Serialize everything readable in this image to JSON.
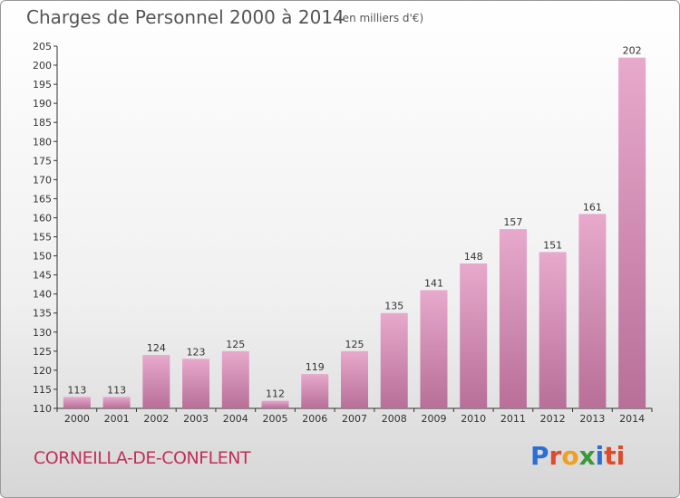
{
  "header": {
    "title": "Charges de Personnel 2000 à 2014",
    "unit": "(en milliers d'€)"
  },
  "footer": {
    "commune": "CORNEILLA-DE-CONFLENT",
    "logo": "Proxiti",
    "logo_letters": [
      "P",
      "r",
      "o",
      "x",
      "i",
      "ti"
    ]
  },
  "colors": {
    "bar_top": "#e7a9cc",
    "bar_bottom": "#b86f98",
    "axis": "#333333",
    "text": "#333333",
    "title": "#555555",
    "commune": "#c0305a"
  },
  "chart_data": {
    "type": "bar",
    "categories": [
      "2000",
      "2001",
      "2002",
      "2003",
      "2004",
      "2005",
      "2006",
      "2007",
      "2008",
      "2009",
      "2010",
      "2011",
      "2012",
      "2013",
      "2014"
    ],
    "values": [
      113,
      113,
      124,
      123,
      125,
      112,
      119,
      125,
      135,
      141,
      148,
      157,
      151,
      161,
      202
    ],
    "title": "Charges de Personnel 2000 à 2014",
    "subtitle": "(en milliers d'€)",
    "xlabel": "",
    "ylabel": "",
    "ylim": [
      110,
      205
    ],
    "yticks": [
      110,
      115,
      120,
      125,
      130,
      135,
      140,
      145,
      150,
      155,
      160,
      165,
      170,
      175,
      180,
      185,
      190,
      195,
      200,
      205
    ],
    "grid": false,
    "legend": "none",
    "data_labels": true
  }
}
